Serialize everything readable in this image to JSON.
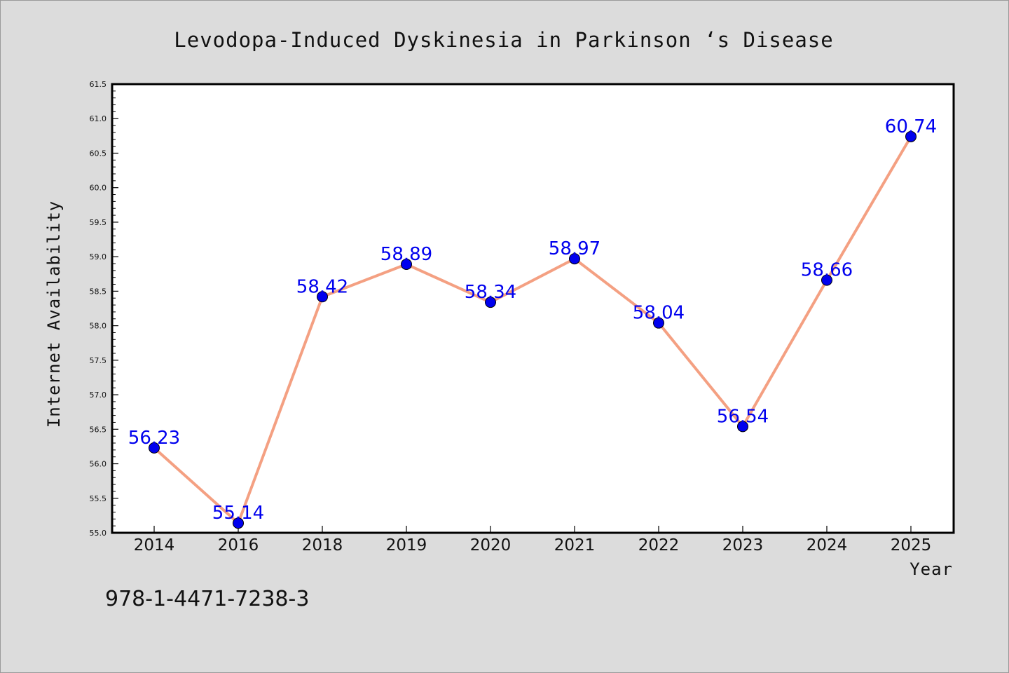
{
  "chart_data": {
    "type": "line",
    "title": "Levodopa-Induced Dyskinesia in Parkinson ‘s Disease",
    "xlabel": "Year",
    "ylabel": "Internet Availability",
    "categories": [
      "2014",
      "2016",
      "2018",
      "2019",
      "2020",
      "2021",
      "2022",
      "2023",
      "2024",
      "2025"
    ],
    "series": [
      {
        "values": [
          56.23,
          55.14,
          58.42,
          58.89,
          58.34,
          58.97,
          58.04,
          56.54,
          58.66,
          60.74
        ],
        "line_color": "#f4a082",
        "marker_color": "#0000ee"
      }
    ],
    "data_labels": [
      "56.23",
      "55.14",
      "58.42",
      "58.89",
      "58.34",
      "58.97",
      "58.04",
      "56.54",
      "58.66",
      "60.74"
    ],
    "ylim": [
      55.0,
      61.5
    ],
    "yticks": [
      "55.0",
      "55.5",
      "56.0",
      "56.5",
      "57.0",
      "57.5",
      "58.0",
      "58.5",
      "59.0",
      "59.5",
      "60.0",
      "60.5",
      "61.0",
      "61.5"
    ],
    "grid": false,
    "legend": "none",
    "background_color": "#dcdcdc",
    "plot_background_color": "#ffffff"
  },
  "annotation": "978-1-4471-7238-3"
}
